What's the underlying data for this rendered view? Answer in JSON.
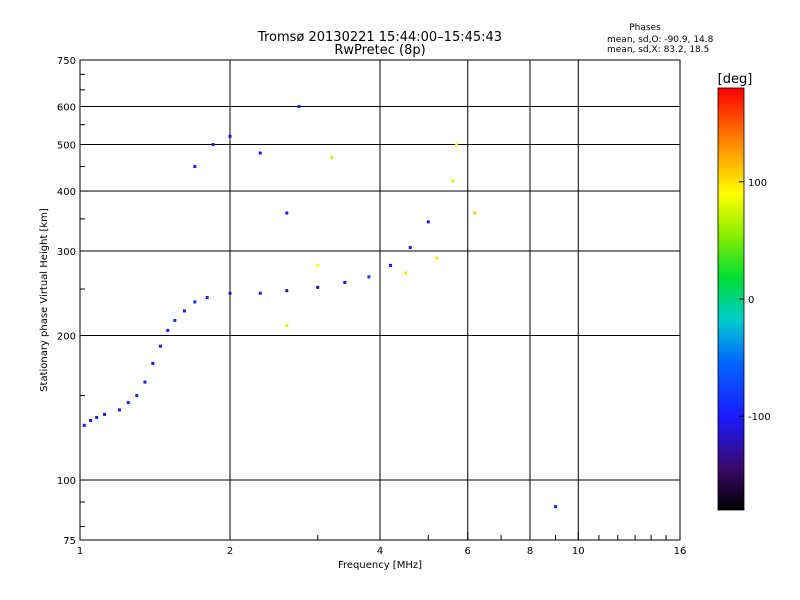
{
  "chart_data": {
    "type": "scatter",
    "title_line1": "Tromsø 20130221 15:44:00–15:45:43",
    "title_line2": "RwPretec (8p)",
    "xlabel": "Frequency [MHz]",
    "ylabel": "Stationary phase Virtual Height [km]",
    "x_scale": "log",
    "y_scale": "log",
    "xlim": [
      1,
      16
    ],
    "ylim": [
      75,
      750
    ],
    "x_ticks": [
      1,
      2,
      4,
      6,
      8,
      10,
      16
    ],
    "y_ticks": [
      75,
      100,
      200,
      300,
      400,
      500,
      600,
      750
    ],
    "x_grid": [
      2,
      4,
      6,
      8,
      10
    ],
    "y_grid": [
      100,
      200,
      300,
      400,
      500,
      600
    ],
    "grid": true,
    "phase_box": {
      "title": "Phases",
      "line_o": "mean, sd,O: -90.9, 14.8",
      "line_x": "mean, sd,X: 83.2, 18.5"
    },
    "colorbar": {
      "label": "[deg]",
      "ticks": [
        -100,
        0,
        100
      ],
      "range": [
        -180,
        180
      ],
      "placement": "right"
    },
    "series": [
      {
        "values": [
          {
            "x": 1.02,
            "y": 130,
            "p": -100
          },
          {
            "x": 1.05,
            "y": 133,
            "p": -105
          },
          {
            "x": 1.08,
            "y": 135,
            "p": -95
          },
          {
            "x": 1.12,
            "y": 137,
            "p": -110
          },
          {
            "x": 1.2,
            "y": 140,
            "p": -100
          },
          {
            "x": 1.25,
            "y": 145,
            "p": -95
          },
          {
            "x": 1.3,
            "y": 150,
            "p": -90
          },
          {
            "x": 1.35,
            "y": 160,
            "p": -100
          },
          {
            "x": 1.4,
            "y": 175,
            "p": -105
          },
          {
            "x": 1.45,
            "y": 190,
            "p": -95
          },
          {
            "x": 1.5,
            "y": 205,
            "p": -100
          },
          {
            "x": 1.55,
            "y": 215,
            "p": -90
          },
          {
            "x": 1.62,
            "y": 225,
            "p": -100
          },
          {
            "x": 1.7,
            "y": 235,
            "p": -95
          },
          {
            "x": 1.8,
            "y": 240,
            "p": -100
          },
          {
            "x": 2.0,
            "y": 245,
            "p": -110
          },
          {
            "x": 2.3,
            "y": 245,
            "p": -115
          },
          {
            "x": 2.6,
            "y": 248,
            "p": -120
          },
          {
            "x": 3.0,
            "y": 252,
            "p": -125
          },
          {
            "x": 3.4,
            "y": 258,
            "p": -110
          },
          {
            "x": 3.8,
            "y": 265,
            "p": -80
          },
          {
            "x": 4.2,
            "y": 280,
            "p": -100
          },
          {
            "x": 4.6,
            "y": 305,
            "p": -105
          },
          {
            "x": 5.0,
            "y": 345,
            "p": -110
          },
          {
            "x": 1.7,
            "y": 450,
            "p": -100
          },
          {
            "x": 1.85,
            "y": 500,
            "p": -95
          },
          {
            "x": 2.0,
            "y": 520,
            "p": -105
          },
          {
            "x": 2.3,
            "y": 480,
            "p": -100
          },
          {
            "x": 2.6,
            "y": 360,
            "p": -100
          },
          {
            "x": 2.75,
            "y": 600,
            "p": -95
          },
          {
            "x": 2.6,
            "y": 210,
            "p": 80
          },
          {
            "x": 3.0,
            "y": 280,
            "p": 90
          },
          {
            "x": 3.2,
            "y": 470,
            "p": 70
          },
          {
            "x": 4.5,
            "y": 270,
            "p": 100
          },
          {
            "x": 5.2,
            "y": 290,
            "p": 100
          },
          {
            "x": 5.6,
            "y": 420,
            "p": 80
          },
          {
            "x": 5.7,
            "y": 500,
            "p": 90
          },
          {
            "x": 6.2,
            "y": 360,
            "p": 110
          },
          {
            "x": 9.0,
            "y": 88,
            "p": -90
          }
        ]
      }
    ]
  }
}
